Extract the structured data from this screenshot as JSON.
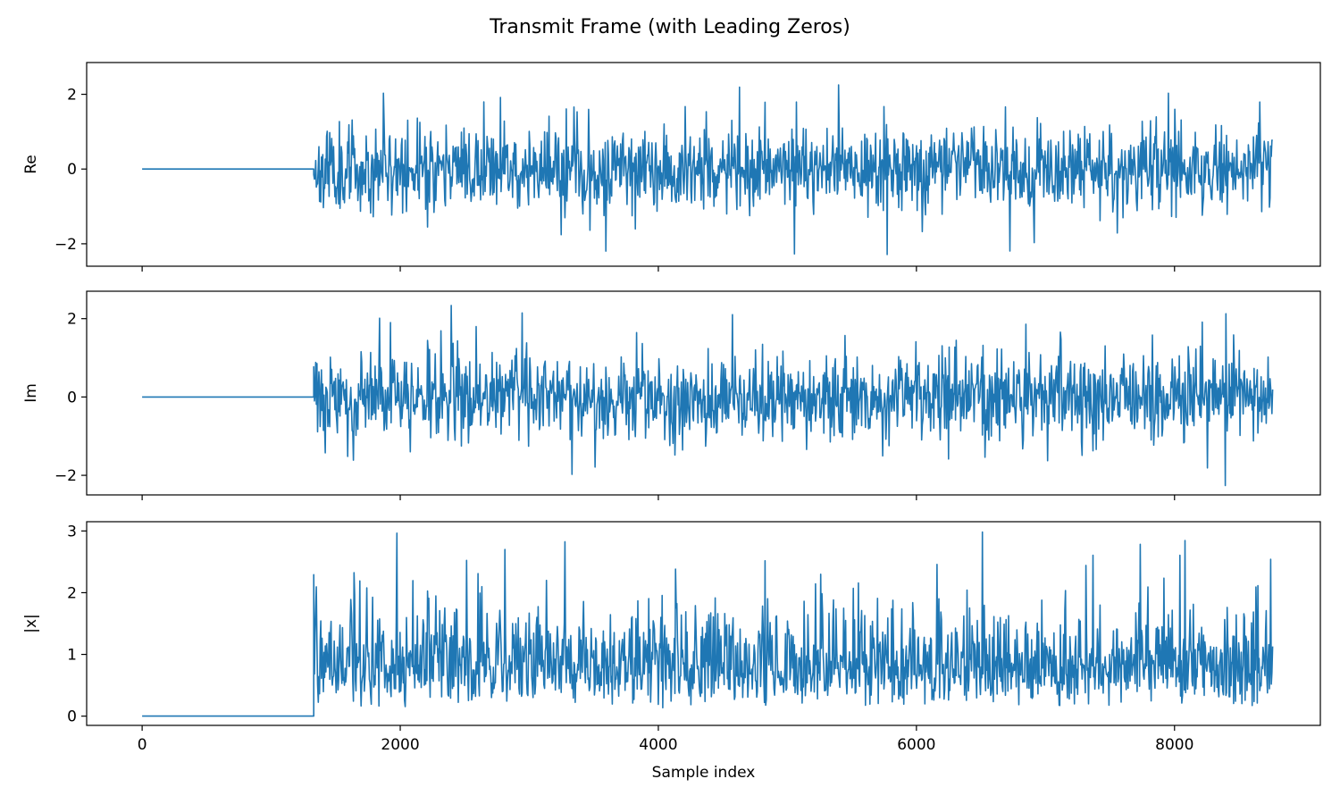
{
  "figure": {
    "title": "Transmit Frame (with Leading Zeros)"
  },
  "chart_data": [
    {
      "type": "line",
      "ylabel": "Re",
      "xlabel": "",
      "xlim": [
        -430,
        9130
      ],
      "ylim": [
        -2.6,
        2.85
      ],
      "xticks": [
        0,
        2000,
        4000,
        6000,
        8000
      ],
      "yticks": [
        -2,
        0,
        2
      ],
      "ytick_labels": [
        "−2",
        "0",
        "2"
      ],
      "show_x_tick_labels": false,
      "color": "#1f77b4",
      "signal": {
        "zeros_until": 1330,
        "end": 8760,
        "spread": 0.55,
        "peak_max": 2.6,
        "peak_min": -2.35,
        "seed": 11
      }
    },
    {
      "type": "line",
      "ylabel": "Im",
      "xlabel": "",
      "xlim": [
        -430,
        9130
      ],
      "ylim": [
        -2.5,
        2.7
      ],
      "xticks": [
        0,
        2000,
        4000,
        6000,
        8000
      ],
      "yticks": [
        -2,
        0,
        2
      ],
      "ytick_labels": [
        "−2",
        "0",
        "2"
      ],
      "show_x_tick_labels": false,
      "color": "#1f77b4",
      "signal": {
        "zeros_until": 1330,
        "end": 8760,
        "spread": 0.55,
        "peak_max": 2.45,
        "peak_min": -2.3,
        "seed": 29
      }
    },
    {
      "type": "line",
      "ylabel": "|x|",
      "xlabel": "Sample index",
      "xlim": [
        -430,
        9130
      ],
      "ylim": [
        -0.15,
        3.15
      ],
      "xticks": [
        0,
        2000,
        4000,
        6000,
        8000
      ],
      "xtick_labels": [
        "0",
        "2000",
        "4000",
        "6000",
        "8000"
      ],
      "yticks": [
        0,
        1,
        2,
        3
      ],
      "ytick_labels": [
        "0",
        "1",
        "2",
        "3"
      ],
      "show_x_tick_labels": true,
      "color": "#1f77b4",
      "signal": {
        "zeros_until": 1330,
        "end": 8760,
        "spread": 0.45,
        "peak_max": 3.0,
        "peak_min": 0.0,
        "seed": 47,
        "magnitude": true
      }
    }
  ]
}
